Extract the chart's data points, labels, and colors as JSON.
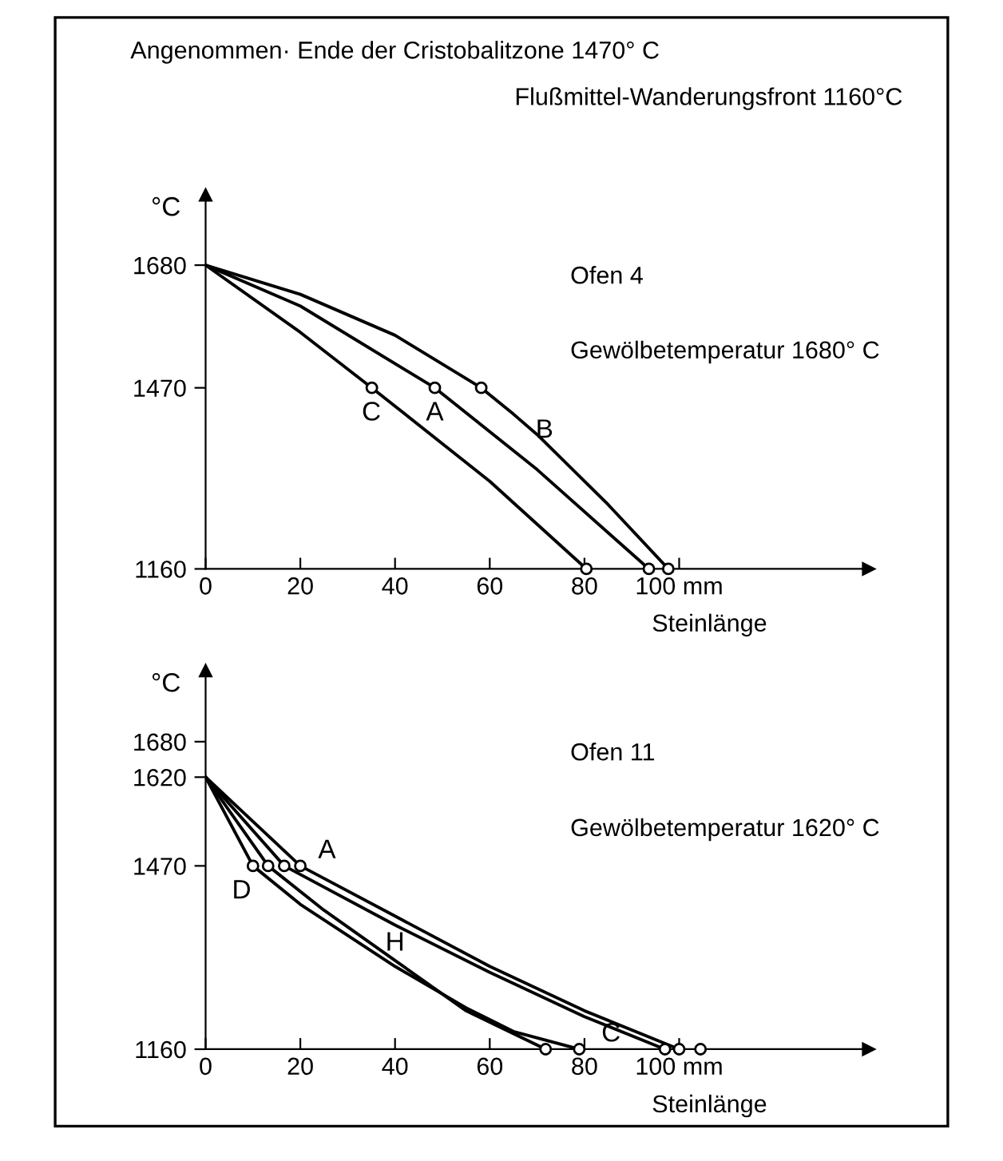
{
  "chart_data": [
    {
      "type": "line",
      "title": "Angenommen· Ende der Cristobalitzone 1470° C",
      "subtitle": "Flußmittel-Wanderungsfront 1160°C",
      "xlabel": "Steinlänge",
      "ylabel": "°C",
      "xlim": [
        0,
        140
      ],
      "ylim": [
        1160,
        1800
      ],
      "xticks": [
        0,
        20,
        40,
        60,
        80,
        {
          "value": 100,
          "label": "100 mm"
        }
      ],
      "yticks": [
        1160,
        1470,
        1680
      ],
      "grid": false,
      "legend": false,
      "marker": "none",
      "annotations": [
        "Ofen 4",
        "Gewölbetemperatur 1680° C",
        {
          "text": "C",
          "x": 35,
          "y": 1470
        },
        {
          "text": "A",
          "x": 48.4,
          "y": 1470
        },
        {
          "text": "B",
          "x": 65,
          "y": 1425
        }
      ],
      "series": [
        {
          "color": "#000000",
          "x": [
            0,
            20,
            35.1,
            60,
            80.4
          ],
          "values": [
            1680,
            1565,
            1470,
            1310,
            1160
          ]
        },
        {
          "color": "#000000",
          "x": [
            0,
            20,
            48.4,
            70,
            93.6
          ],
          "values": [
            1680,
            1610,
            1470,
            1330,
            1160
          ]
        },
        {
          "color": "#000000",
          "x": [
            0,
            20,
            40,
            58.2,
            65,
            70,
            85,
            97.7
          ],
          "values": [
            1680,
            1630,
            1560,
            1470,
            1425,
            1390,
            1270,
            1160
          ]
        },
        {
          "type": "scatter",
          "marker": "circle",
          "color": "#000000",
          "x": [
            35.1,
            48.4,
            58.2,
            80.4,
            93.6,
            97.7
          ],
          "values": [
            1470,
            1470,
            1470,
            1160,
            1160,
            1160
          ]
        }
      ]
    },
    {
      "type": "line",
      "xlabel": "Steinlänge",
      "ylabel": "°C",
      "xlim": [
        0,
        140
      ],
      "ylim": [
        1160,
        1800
      ],
      "xticks": [
        0,
        20,
        40,
        60,
        80,
        {
          "value": 100,
          "label": "100 mm"
        }
      ],
      "yticks": [
        1160,
        1470,
        1620,
        1680
      ],
      "grid": false,
      "legend": false,
      "marker": "none",
      "annotations": [
        "Ofen 11",
        "Gewölbetemperatur 1620° C",
        {
          "text": "D",
          "x": 9,
          "y": 1470
        },
        {
          "text": "A",
          "x": 20,
          "y": 1470
        },
        {
          "text": "H",
          "x": 40,
          "y": 1310
        },
        {
          "text": "C",
          "x": 78.9,
          "y": 1160
        }
      ],
      "series": [
        {
          "color": "#000000",
          "x": [
            0,
            10,
            20,
            40,
            55,
            65,
            78.9
          ],
          "values": [
            1620,
            1470,
            1405,
            1300,
            1230,
            1190,
            1160
          ]
        },
        {
          "color": "#000000",
          "x": [
            0,
            13.2,
            25,
            40,
            55,
            71.8
          ],
          "values": [
            1620,
            1470,
            1395,
            1310,
            1225,
            1160
          ]
        },
        {
          "color": "#000000",
          "x": [
            0,
            16.6,
            40,
            60,
            80,
            97
          ],
          "values": [
            1620,
            1470,
            1370,
            1290,
            1215,
            1160
          ]
        },
        {
          "color": "#000000",
          "x": [
            0,
            20,
            40,
            60,
            80,
            100
          ],
          "values": [
            1620,
            1470,
            1385,
            1300,
            1225,
            1160
          ]
        },
        {
          "type": "scatter",
          "marker": "circle",
          "color": "#000000",
          "x": [
            10,
            13.2,
            16.6,
            20,
            71.8,
            78.9,
            97,
            100,
            104.5
          ],
          "values": [
            1470,
            1470,
            1470,
            1470,
            1160,
            1160,
            1160,
            1160,
            1160
          ]
        }
      ]
    }
  ]
}
